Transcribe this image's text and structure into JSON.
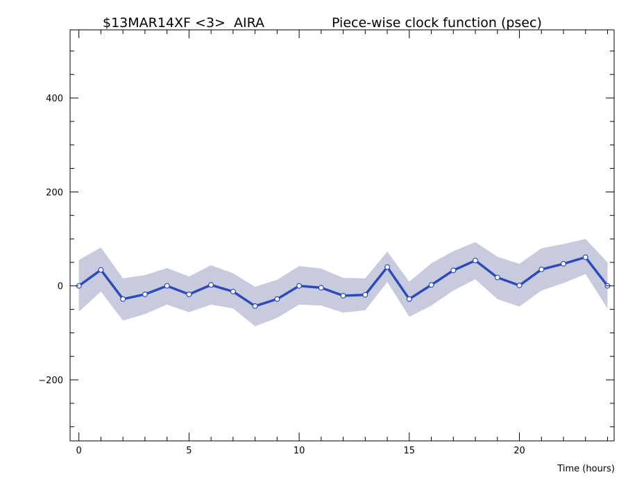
{
  "chart_data": {
    "type": "line",
    "title_left": "$13MAR14XF <3>  AIRA",
    "title_right": "Piece-wise clock function (psec)",
    "xlabel": "Time (hours)",
    "ylabel": "",
    "xlim": [
      -0.4,
      24.3
    ],
    "ylim": [
      -330,
      545
    ],
    "x_major_ticks": [
      0,
      5,
      10,
      15,
      20
    ],
    "x_minor_ticks": [
      1,
      2,
      3,
      4,
      6,
      7,
      8,
      9,
      11,
      12,
      13,
      14,
      16,
      17,
      18,
      19,
      21,
      22,
      23,
      24
    ],
    "y_major_ticks": [
      -200,
      0,
      200,
      400
    ],
    "y_minor_ticks": [
      -300,
      -250,
      -150,
      -100,
      -50,
      50,
      100,
      150,
      250,
      300,
      350,
      450,
      500
    ],
    "series": [
      {
        "x": [
          0,
          1,
          2,
          3,
          4,
          5,
          6,
          7,
          8,
          9,
          10,
          11,
          12,
          13,
          14,
          15,
          16,
          17,
          18,
          19,
          20,
          21,
          22,
          23,
          24
        ],
        "values": [
          0,
          34,
          -28,
          -18,
          0,
          -18,
          2,
          -12,
          -43,
          -28,
          0,
          -4,
          -21,
          -19,
          40,
          -28,
          2,
          33,
          54,
          18,
          1,
          35,
          47,
          61,
          0
        ],
        "upper": [
          55,
          82,
          16,
          23,
          38,
          20,
          44,
          27,
          -2,
          13,
          42,
          37,
          17,
          16,
          73,
          9,
          48,
          74,
          93,
          62,
          47,
          80,
          89,
          100,
          50
        ],
        "lower": [
          -55,
          -12,
          -74,
          -60,
          -40,
          -56,
          -40,
          -48,
          -86,
          -68,
          -40,
          -42,
          -57,
          -52,
          8,
          -66,
          -42,
          -10,
          14,
          -28,
          -44,
          -10,
          6,
          25,
          -48
        ]
      }
    ],
    "colors": {
      "line": "#2d4bb8",
      "band": "#c7cbdd",
      "marker_fill": "#ffffff",
      "axes": "#000000"
    },
    "grid": false,
    "legend": "none"
  }
}
